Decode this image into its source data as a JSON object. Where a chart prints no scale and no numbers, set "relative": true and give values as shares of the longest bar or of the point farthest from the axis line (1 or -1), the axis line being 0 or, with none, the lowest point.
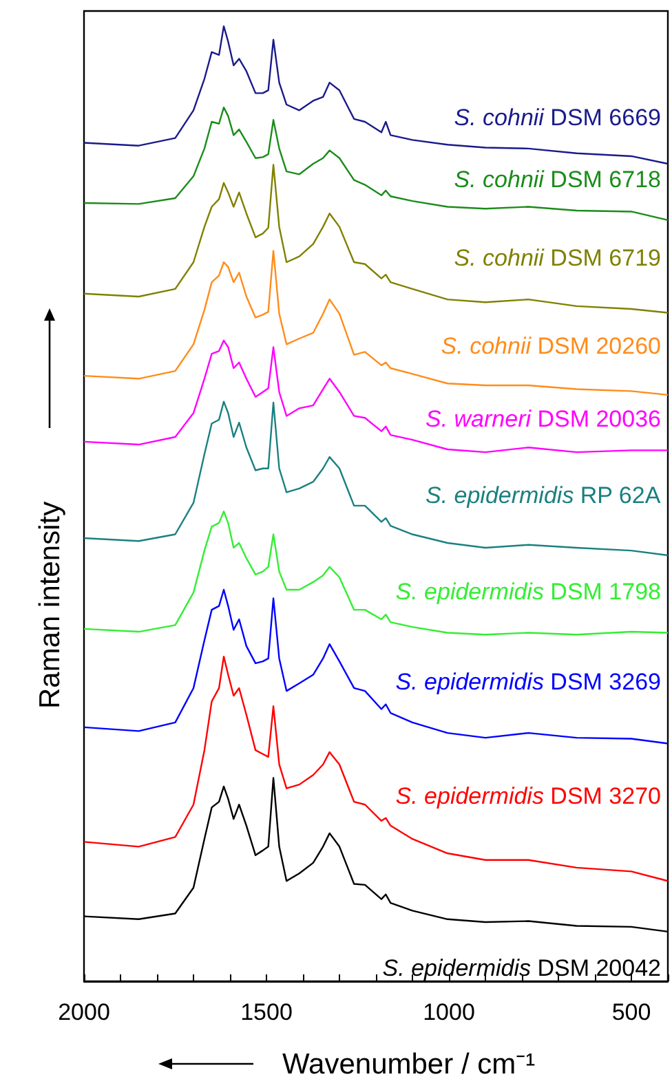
{
  "chart_data": {
    "type": "line",
    "relative": true,
    "marker": "none",
    "xlabel": "Wavenumber / cm⁻¹",
    "ylabel": "Raman intensity",
    "xlim": [
      2000,
      400
    ],
    "xticks": [
      2000,
      {
        "value": 1900,
        "label": null
      },
      {
        "value": 1800,
        "label": null
      },
      {
        "value": 1700,
        "label": null
      },
      {
        "value": 1600,
        "label": null
      },
      1500,
      {
        "value": 1400,
        "label": null
      },
      {
        "value": 1300,
        "label": null
      },
      {
        "value": 1200,
        "label": null
      },
      {
        "value": 1100,
        "label": null
      },
      1000,
      {
        "value": 900,
        "label": null
      },
      {
        "value": 800,
        "label": null
      },
      {
        "value": 700,
        "label": null
      },
      {
        "value": 600,
        "label": null
      },
      500,
      {
        "value": 400,
        "label": null
      }
    ],
    "x": [
      2000,
      1850,
      1750,
      1700,
      1670,
      1650,
      1630,
      1617,
      1605,
      1590,
      1575,
      1555,
      1530,
      1510,
      1495,
      1481,
      1465,
      1445,
      1410,
      1372,
      1345,
      1327,
      1300,
      1260,
      1230,
      1185,
      1173,
      1160,
      1100,
      1004,
      900,
      782,
      650,
      500,
      400
    ],
    "series": [
      {
        "name": "S. cohnii DSM 6669",
        "color": "#1a1a8c",
        "values": [
          0.878,
          0.875,
          0.883,
          0.912,
          0.945,
          0.973,
          0.97,
          1.0,
          0.984,
          0.959,
          0.966,
          0.953,
          0.93,
          0.93,
          0.933,
          0.986,
          0.941,
          0.918,
          0.912,
          0.922,
          0.926,
          0.941,
          0.933,
          0.903,
          0.9,
          0.889,
          0.9,
          0.886,
          0.881,
          0.876,
          0.873,
          0.872,
          0.867,
          0.864,
          0.856
        ]
      },
      {
        "name": "S. cohnii DSM 6718",
        "color": "#1a8c1a",
        "values": [
          0.815,
          0.814,
          0.82,
          0.843,
          0.872,
          0.9,
          0.898,
          0.915,
          0.906,
          0.886,
          0.892,
          0.879,
          0.862,
          0.863,
          0.866,
          0.902,
          0.872,
          0.848,
          0.845,
          0.856,
          0.862,
          0.87,
          0.862,
          0.839,
          0.834,
          0.823,
          0.828,
          0.822,
          0.817,
          0.811,
          0.809,
          0.811,
          0.807,
          0.806,
          0.797
        ]
      },
      {
        "name": "S. cohnii DSM 6719",
        "color": "#808000",
        "values": [
          0.72,
          0.717,
          0.725,
          0.753,
          0.79,
          0.811,
          0.819,
          0.836,
          0.826,
          0.811,
          0.826,
          0.804,
          0.779,
          0.783,
          0.789,
          0.855,
          0.79,
          0.753,
          0.759,
          0.772,
          0.79,
          0.804,
          0.79,
          0.753,
          0.751,
          0.736,
          0.74,
          0.732,
          0.725,
          0.714,
          0.711,
          0.714,
          0.707,
          0.704,
          0.7
        ]
      },
      {
        "name": "S. cohnii DSM 20260",
        "color": "#ff8c1a",
        "values": [
          0.634,
          0.631,
          0.639,
          0.667,
          0.703,
          0.732,
          0.739,
          0.753,
          0.748,
          0.732,
          0.742,
          0.717,
          0.695,
          0.698,
          0.701,
          0.765,
          0.699,
          0.667,
          0.673,
          0.679,
          0.699,
          0.714,
          0.699,
          0.656,
          0.659,
          0.645,
          0.648,
          0.642,
          0.636,
          0.626,
          0.624,
          0.624,
          0.62,
          0.618,
          0.614
        ]
      },
      {
        "name": "S. warneri DSM 20036",
        "color": "#ff00ff",
        "values": [
          0.565,
          0.562,
          0.57,
          0.595,
          0.631,
          0.657,
          0.66,
          0.671,
          0.664,
          0.642,
          0.648,
          0.631,
          0.612,
          0.617,
          0.621,
          0.664,
          0.617,
          0.592,
          0.6,
          0.603,
          0.62,
          0.631,
          0.617,
          0.592,
          0.59,
          0.576,
          0.581,
          0.572,
          0.567,
          0.557,
          0.554,
          0.559,
          0.554,
          0.556,
          0.556
        ]
      },
      {
        "name": "S. epidermidis RP 62A",
        "color": "#1a8080",
        "values": [
          0.464,
          0.461,
          0.468,
          0.501,
          0.552,
          0.584,
          0.588,
          0.607,
          0.595,
          0.57,
          0.585,
          0.559,
          0.535,
          0.537,
          0.537,
          0.606,
          0.537,
          0.512,
          0.516,
          0.523,
          0.537,
          0.549,
          0.537,
          0.498,
          0.498,
          0.481,
          0.485,
          0.477,
          0.468,
          0.459,
          0.454,
          0.457,
          0.454,
          0.451,
          0.446
        ]
      },
      {
        "name": "S. epidermidis DSM 1798",
        "color": "#33ee33",
        "values": [
          0.369,
          0.366,
          0.373,
          0.407,
          0.451,
          0.476,
          0.48,
          0.492,
          0.48,
          0.454,
          0.459,
          0.443,
          0.426,
          0.429,
          0.434,
          0.468,
          0.429,
          0.41,
          0.41,
          0.418,
          0.425,
          0.434,
          0.423,
          0.389,
          0.389,
          0.379,
          0.384,
          0.376,
          0.371,
          0.365,
          0.363,
          0.365,
          0.363,
          0.366,
          0.365
        ]
      },
      {
        "name": "S. epidermidis DSM 3269",
        "color": "#0000ff",
        "values": [
          0.266,
          0.262,
          0.271,
          0.307,
          0.357,
          0.389,
          0.393,
          0.41,
          0.393,
          0.368,
          0.379,
          0.351,
          0.333,
          0.335,
          0.338,
          0.401,
          0.338,
          0.304,
          0.312,
          0.321,
          0.338,
          0.353,
          0.335,
          0.307,
          0.304,
          0.285,
          0.29,
          0.281,
          0.271,
          0.26,
          0.255,
          0.26,
          0.255,
          0.254,
          0.249
        ]
      },
      {
        "name": "S. epidermidis DSM 3270",
        "color": "#ff0000",
        "values": [
          0.146,
          0.141,
          0.151,
          0.185,
          0.242,
          0.293,
          0.307,
          0.34,
          0.321,
          0.299,
          0.307,
          0.279,
          0.242,
          0.238,
          0.235,
          0.288,
          0.227,
          0.202,
          0.206,
          0.216,
          0.227,
          0.24,
          0.227,
          0.188,
          0.185,
          0.168,
          0.171,
          0.163,
          0.149,
          0.134,
          0.127,
          0.127,
          0.119,
          0.115,
          0.105
        ]
      },
      {
        "name": "S. epidermidis DSM 20042",
        "color": "#000000",
        "values": [
          0.068,
          0.065,
          0.071,
          0.098,
          0.149,
          0.182,
          0.188,
          0.204,
          0.191,
          0.17,
          0.185,
          0.163,
          0.132,
          0.137,
          0.141,
          0.213,
          0.141,
          0.105,
          0.113,
          0.124,
          0.141,
          0.155,
          0.141,
          0.102,
          0.101,
          0.086,
          0.091,
          0.082,
          0.074,
          0.065,
          0.062,
          0.063,
          0.058,
          0.057,
          0.052
        ]
      }
    ]
  }
}
